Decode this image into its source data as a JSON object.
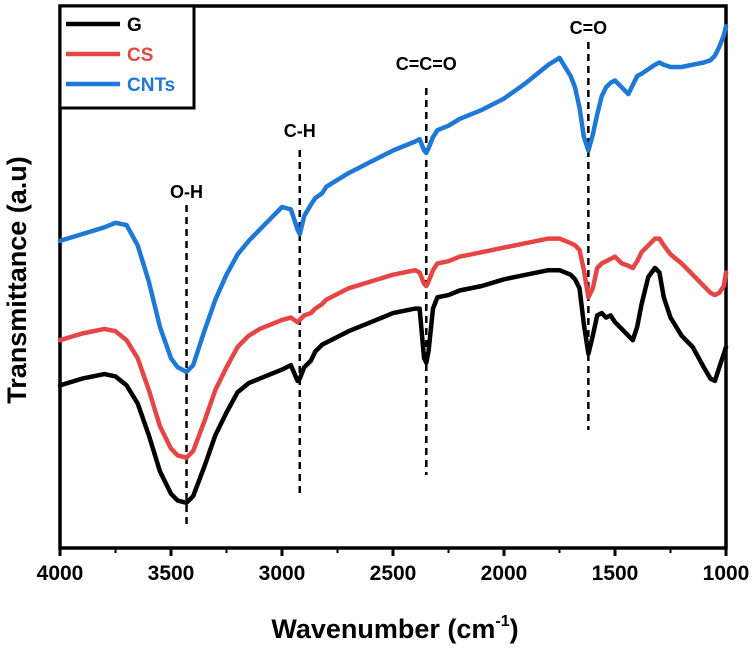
{
  "chart_data": {
    "type": "line",
    "xlabel": "Wavenumber (cm",
    "xlabel_sup": "-1",
    "xlabel_close": ")",
    "ylabel": "Transmittance (a.u)",
    "xlim": [
      4000,
      1000
    ],
    "ylim": [
      0,
      12
    ],
    "x_reversed": true,
    "y_ticks_shown": false,
    "grid": false,
    "legend_position": "top-left",
    "x_ticks": [
      4000,
      3500,
      3000,
      2500,
      2000,
      1500,
      1000
    ],
    "x_tick_labels": [
      "4000",
      "3500",
      "3000",
      "2500",
      "2000",
      "1500",
      "1000"
    ],
    "annotations": [
      {
        "label": "O-H",
        "x": 3430
      },
      {
        "label": "C-H",
        "x": 2920
      },
      {
        "label": "C=C=O",
        "x": 2350
      },
      {
        "label": "C=O",
        "x": 1620
      }
    ],
    "series": [
      {
        "name": "G",
        "color": "#000000",
        "x": [
          4000,
          3900,
          3800,
          3750,
          3700,
          3650,
          3600,
          3550,
          3500,
          3470,
          3430,
          3400,
          3350,
          3300,
          3250,
          3200,
          3150,
          3100,
          3050,
          3000,
          2960,
          2930,
          2920,
          2900,
          2870,
          2850,
          2820,
          2800,
          2700,
          2600,
          2500,
          2400,
          2380,
          2360,
          2350,
          2340,
          2320,
          2300,
          2250,
          2200,
          2100,
          2000,
          1900,
          1800,
          1750,
          1700,
          1680,
          1660,
          1640,
          1620,
          1600,
          1580,
          1560,
          1540,
          1520,
          1500,
          1470,
          1440,
          1420,
          1400,
          1380,
          1350,
          1320,
          1300,
          1280,
          1250,
          1200,
          1150,
          1100,
          1070,
          1050,
          1030,
          1010,
          1000
        ],
        "y": [
          3.6,
          3.75,
          3.85,
          3.8,
          3.6,
          3.2,
          2.5,
          1.7,
          1.2,
          1.05,
          1.0,
          1.15,
          1.8,
          2.5,
          3.0,
          3.45,
          3.65,
          3.75,
          3.85,
          3.95,
          4.05,
          3.7,
          3.75,
          4.0,
          4.15,
          4.35,
          4.5,
          4.55,
          4.8,
          5.0,
          5.2,
          5.3,
          5.3,
          4.2,
          4.1,
          4.35,
          5.3,
          5.55,
          5.6,
          5.7,
          5.8,
          5.95,
          6.05,
          6.15,
          6.15,
          6.05,
          5.95,
          5.75,
          4.95,
          4.3,
          4.7,
          5.15,
          5.2,
          5.1,
          5.15,
          5.0,
          4.85,
          4.7,
          4.6,
          4.9,
          5.4,
          6.0,
          6.2,
          6.1,
          5.55,
          5.1,
          4.7,
          4.45,
          4.0,
          3.75,
          3.7,
          4.0,
          4.3,
          4.45
        ]
      },
      {
        "name": "CS",
        "color": "#e74545",
        "x": [
          4000,
          3900,
          3800,
          3750,
          3700,
          3650,
          3600,
          3550,
          3500,
          3470,
          3430,
          3400,
          3350,
          3300,
          3250,
          3200,
          3150,
          3100,
          3050,
          3000,
          2960,
          2930,
          2920,
          2900,
          2870,
          2850,
          2820,
          2800,
          2700,
          2600,
          2500,
          2400,
          2380,
          2360,
          2350,
          2340,
          2320,
          2300,
          2250,
          2200,
          2100,
          2000,
          1900,
          1800,
          1750,
          1700,
          1680,
          1660,
          1640,
          1620,
          1600,
          1580,
          1560,
          1540,
          1520,
          1500,
          1470,
          1440,
          1420,
          1400,
          1380,
          1350,
          1320,
          1300,
          1280,
          1250,
          1200,
          1150,
          1100,
          1070,
          1050,
          1030,
          1010,
          1000
        ],
        "y": [
          4.6,
          4.75,
          4.85,
          4.8,
          4.6,
          4.2,
          3.5,
          2.7,
          2.2,
          2.05,
          2.0,
          2.15,
          2.8,
          3.5,
          4.0,
          4.45,
          4.7,
          4.85,
          4.95,
          5.05,
          5.1,
          5.0,
          5.05,
          5.15,
          5.2,
          5.3,
          5.4,
          5.5,
          5.75,
          5.9,
          6.05,
          6.15,
          6.1,
          5.85,
          5.8,
          5.9,
          6.15,
          6.3,
          6.35,
          6.45,
          6.55,
          6.65,
          6.75,
          6.85,
          6.85,
          6.75,
          6.7,
          6.6,
          6.15,
          5.55,
          5.75,
          6.2,
          6.3,
          6.35,
          6.4,
          6.45,
          6.3,
          6.25,
          6.2,
          6.35,
          6.55,
          6.7,
          6.85,
          6.85,
          6.7,
          6.5,
          6.3,
          6.05,
          5.8,
          5.65,
          5.6,
          5.65,
          5.8,
          6.1
        ]
      },
      {
        "name": "CNTs",
        "color": "#1e78d7",
        "x": [
          4000,
          3900,
          3800,
          3750,
          3700,
          3650,
          3600,
          3550,
          3500,
          3470,
          3430,
          3400,
          3350,
          3300,
          3250,
          3200,
          3150,
          3100,
          3050,
          3000,
          2960,
          2930,
          2920,
          2900,
          2870,
          2850,
          2820,
          2800,
          2700,
          2600,
          2500,
          2400,
          2380,
          2360,
          2350,
          2340,
          2320,
          2300,
          2250,
          2200,
          2100,
          2000,
          1900,
          1800,
          1750,
          1700,
          1680,
          1660,
          1640,
          1620,
          1600,
          1580,
          1560,
          1540,
          1520,
          1500,
          1470,
          1440,
          1420,
          1400,
          1380,
          1350,
          1320,
          1300,
          1280,
          1250,
          1200,
          1150,
          1100,
          1070,
          1050,
          1030,
          1010,
          1000
        ],
        "y": [
          6.8,
          6.95,
          7.1,
          7.2,
          7.15,
          6.7,
          5.9,
          4.9,
          4.2,
          4.0,
          3.9,
          4.05,
          4.8,
          5.5,
          6.05,
          6.5,
          6.8,
          7.05,
          7.3,
          7.55,
          7.5,
          7.05,
          6.95,
          7.35,
          7.6,
          7.75,
          7.85,
          8.0,
          8.3,
          8.55,
          8.8,
          9.0,
          9.05,
          8.8,
          8.75,
          8.85,
          9.1,
          9.25,
          9.35,
          9.5,
          9.7,
          9.95,
          10.3,
          10.7,
          10.85,
          10.45,
          10.2,
          9.75,
          9.1,
          8.8,
          9.15,
          9.6,
          10.0,
          10.2,
          10.3,
          10.35,
          10.2,
          10.05,
          10.25,
          10.45,
          10.5,
          10.6,
          10.7,
          10.75,
          10.7,
          10.65,
          10.65,
          10.7,
          10.75,
          10.8,
          10.9,
          11.1,
          11.35,
          11.55
        ]
      }
    ]
  }
}
